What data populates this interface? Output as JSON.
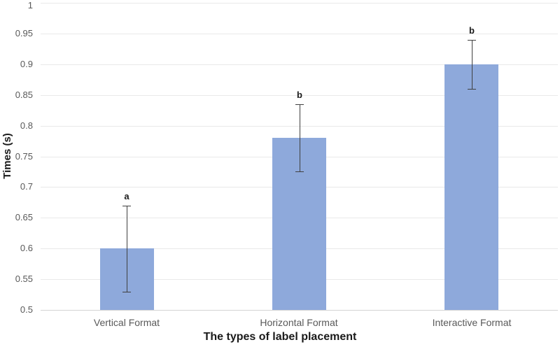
{
  "chart_data": {
    "type": "bar",
    "title": "",
    "xlabel": "The types of label placement",
    "ylabel": "Times (s)",
    "categories": [
      "Vertical Format",
      "Horizontal Format",
      "Interactive Format"
    ],
    "series": [
      {
        "name": "Times",
        "values": [
          0.6,
          0.78,
          0.9
        ],
        "error_low": [
          0.53,
          0.725,
          0.86
        ],
        "error_high": [
          0.67,
          0.835,
          0.94
        ],
        "sig_letters": [
          "a",
          "b",
          "b"
        ]
      }
    ],
    "ylim": [
      0.5,
      1.0
    ],
    "ytick_step": 0.05,
    "ytick_labels": [
      "0.5",
      "0.55",
      "0.6",
      "0.65",
      "0.7",
      "0.75",
      "0.8",
      "0.85",
      "0.9",
      "0.95",
      "1"
    ],
    "grid": true,
    "legend_position": "none",
    "colors": {
      "bar_fill": "#8EA9DB",
      "error_bar": "#404040",
      "gridline": "#E9E9E9",
      "axis_line": "#D4D4D4",
      "tick_label": "#595959",
      "category_label": "#595959",
      "axis_title": "#1a1a1a",
      "background": "#ffffff"
    }
  }
}
